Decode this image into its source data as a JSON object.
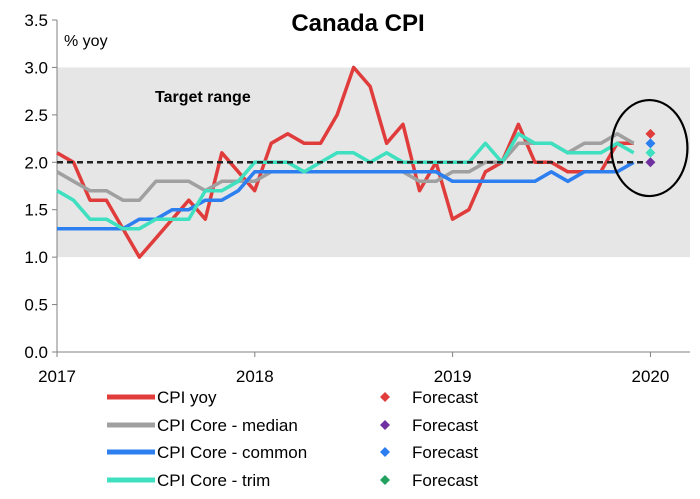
{
  "chart_data": {
    "type": "line",
    "title": "Canada CPI",
    "ylabel": "% yoy",
    "annotation": "Target range",
    "target_band": [
      1.0,
      3.0
    ],
    "target_line": 2.0,
    "ylim": [
      0.0,
      3.5
    ],
    "y_ticks": [
      "0.0",
      "0.5",
      "1.0",
      "1.5",
      "2.0",
      "2.5",
      "3.0",
      "3.5"
    ],
    "xlim": [
      2017.0,
      2020.2
    ],
    "x_ticks": [
      {
        "value": 2017,
        "label": "2017"
      },
      {
        "value": 2018,
        "label": "2018"
      },
      {
        "value": 2019,
        "label": "2019"
      },
      {
        "value": 2020,
        "label": "2020"
      }
    ],
    "grid": false,
    "legend_position": "bottom",
    "forecast_x": 2020,
    "series": [
      {
        "name": "CPI yoy",
        "color": "#e03c3c",
        "x_start": 2017.0,
        "x_step": 0.0833,
        "values": [
          2.1,
          2.0,
          1.6,
          1.6,
          1.3,
          1.0,
          1.2,
          1.4,
          1.6,
          1.4,
          2.1,
          1.9,
          1.7,
          2.2,
          2.3,
          2.2,
          2.2,
          2.5,
          3.0,
          2.8,
          2.2,
          2.4,
          1.7,
          2.0,
          1.4,
          1.5,
          1.9,
          2.0,
          2.4,
          2.0,
          2.0,
          1.9,
          1.9,
          1.9,
          2.2,
          2.2
        ],
        "forecast": 2.3,
        "forecast_label": "Forecast"
      },
      {
        "name": "CPI Core - median",
        "color": "#a0a0a0",
        "x_start": 2017.0,
        "x_step": 0.0833,
        "values": [
          1.9,
          1.8,
          1.7,
          1.7,
          1.6,
          1.6,
          1.8,
          1.8,
          1.8,
          1.7,
          1.8,
          1.8,
          1.8,
          1.9,
          1.9,
          1.9,
          1.9,
          1.9,
          1.9,
          1.9,
          1.9,
          1.9,
          1.8,
          1.8,
          1.9,
          1.9,
          2.0,
          2.0,
          2.2,
          2.2,
          2.2,
          2.1,
          2.2,
          2.2,
          2.3,
          2.2
        ],
        "forecast": 2.0,
        "forecast_label": "Forecast"
      },
      {
        "name": "CPI Core - common",
        "color": "#2d7ff0",
        "x_start": 2017.0,
        "x_step": 0.0833,
        "values": [
          1.3,
          1.3,
          1.3,
          1.3,
          1.3,
          1.4,
          1.4,
          1.5,
          1.5,
          1.6,
          1.6,
          1.7,
          1.9,
          1.9,
          1.9,
          1.9,
          1.9,
          1.9,
          1.9,
          1.9,
          1.9,
          1.9,
          1.9,
          1.9,
          1.8,
          1.8,
          1.8,
          1.8,
          1.8,
          1.8,
          1.9,
          1.8,
          1.9,
          1.9,
          1.9,
          2.0
        ],
        "forecast": 2.2,
        "forecast_label": "Forecast"
      },
      {
        "name": "CPI Core - trim",
        "color": "#3fe0c0",
        "x_start": 2017.0,
        "x_step": 0.0833,
        "values": [
          1.7,
          1.6,
          1.4,
          1.4,
          1.3,
          1.3,
          1.4,
          1.4,
          1.4,
          1.7,
          1.7,
          1.8,
          2.0,
          2.0,
          2.0,
          1.9,
          2.0,
          2.1,
          2.1,
          2.0,
          2.1,
          2.0,
          2.0,
          2.0,
          2.0,
          2.0,
          2.2,
          2.0,
          2.3,
          2.2,
          2.2,
          2.1,
          2.1,
          2.1,
          2.2,
          2.1
        ],
        "forecast": 2.1,
        "forecast_label": "Forecast"
      }
    ]
  }
}
